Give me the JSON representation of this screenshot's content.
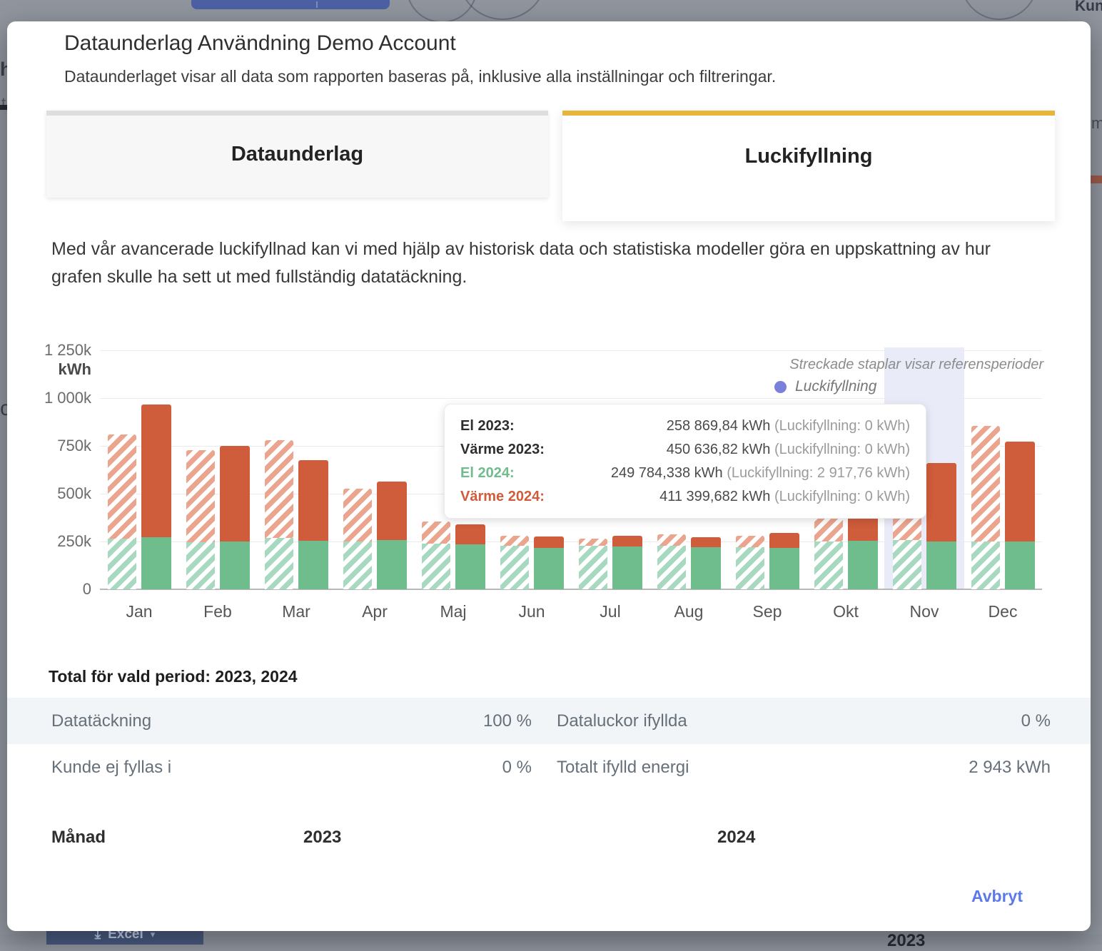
{
  "colors": {
    "green_solid": "#6fbc8c",
    "orange_solid": "#cf5c3a",
    "green_hatch": "#a6d9bf",
    "orange_hatch": "#eba58e",
    "tab_accent": "#e7b43c",
    "legend_dot": "#7c80dd",
    "highlight_band": "#e7e8f7",
    "link_blue": "#5b7ae8"
  },
  "modal": {
    "title": "Dataunderlag Användning Demo Account",
    "subtitle": "Dataunderlaget visar all data som rapporten baseras på, inklusive alla inställningar och filtreringar.",
    "tabs": [
      {
        "label": "Dataunderlag",
        "active": false
      },
      {
        "label": "Luckifyllning",
        "active": true
      }
    ],
    "description": "Med vår avancerade luckifyllnad kan vi med hjälp av historisk data och statistiska modeller göra en uppskattning av hur grafen skulle ha sett ut med fullständig datatäckning.",
    "cancel_label": "Avbryt"
  },
  "chart_data": {
    "type": "bar",
    "stacked": true,
    "unit": "kWh",
    "ylim": [
      0,
      1250000
    ],
    "grid": true,
    "y_ticks": [
      {
        "label": "1 250k",
        "value": 1250000
      },
      {
        "label": "1 000k",
        "value": 1000000
      },
      {
        "label": "750k",
        "value": 750000
      },
      {
        "label": "500k",
        "value": 500000
      },
      {
        "label": "250k",
        "value": 250000
      },
      {
        "label": "0",
        "value": 0
      }
    ],
    "categories": [
      "Jan",
      "Feb",
      "Mar",
      "Apr",
      "Maj",
      "Jun",
      "Jul",
      "Aug",
      "Sep",
      "Okt",
      "Nov",
      "Dec"
    ],
    "series": [
      {
        "name": "El 2023",
        "style": "hatched",
        "color": "green",
        "values": [
          265000,
          245000,
          268000,
          250000,
          240000,
          228000,
          228000,
          228000,
          220000,
          250000,
          258869.84,
          250000
        ]
      },
      {
        "name": "Värme 2023",
        "style": "hatched",
        "color": "orange",
        "values": [
          545000,
          482000,
          512000,
          277000,
          115000,
          52000,
          37000,
          59000,
          60000,
          240000,
          450636.82,
          604000
        ]
      },
      {
        "name": "El 2024",
        "style": "solid",
        "color": "green",
        "values": [
          272000,
          250000,
          255000,
          257000,
          235000,
          216000,
          224000,
          220000,
          216000,
          252000,
          249784.338,
          250000
        ]
      },
      {
        "name": "Värme 2024",
        "style": "solid",
        "color": "orange",
        "values": [
          693000,
          500000,
          421000,
          306000,
          105000,
          60000,
          56000,
          52000,
          79000,
          278000,
          411399.682,
          522000
        ]
      }
    ],
    "legend": {
      "note": "Streckade staplar visar referensperioder",
      "item": "Luckifyllning"
    },
    "highlighted_month": "Nov"
  },
  "tooltip": {
    "rows": [
      {
        "label": "El 2023:",
        "value": "258 869,84 kWh",
        "note": "(Luckifyllning: 0 kWh)"
      },
      {
        "label": "Värme 2023:",
        "value": "450 636,82 kWh",
        "note": "(Luckifyllning: 0 kWh)"
      },
      {
        "label": "El 2024:",
        "value": "249 784,338 kWh",
        "note": "(Luckifyllning: 2 917,76 kWh)"
      },
      {
        "label": "Värme 2024:",
        "value": "411 399,682 kWh",
        "note": "(Luckifyllning: 0 kWh)"
      }
    ]
  },
  "summary": {
    "heading": "Total för vald period: 2023, 2024",
    "rows": [
      [
        {
          "label": "Datatäckning",
          "value": "100 %"
        },
        {
          "label": "Dataluckor ifyllda",
          "value": "0 %"
        }
      ],
      [
        {
          "label": "Kunde ej fyllas i",
          "value": "0 %"
        },
        {
          "label": "Totalt ifylld energi",
          "value": "2 943 kWh"
        }
      ]
    ]
  },
  "table": {
    "headers": [
      "Månad",
      "2023",
      "2024"
    ]
  },
  "background": {
    "top_partial_text": "Kun",
    "edge_letters": {
      "l1": "h",
      "l2": "t",
      "l3": "c",
      "r1": "m"
    },
    "excel_label": "Excel",
    "excel_icon": "⤓",
    "excel_caret": "▾",
    "year_label": "2023",
    "dots": "∙∙∙∙"
  }
}
